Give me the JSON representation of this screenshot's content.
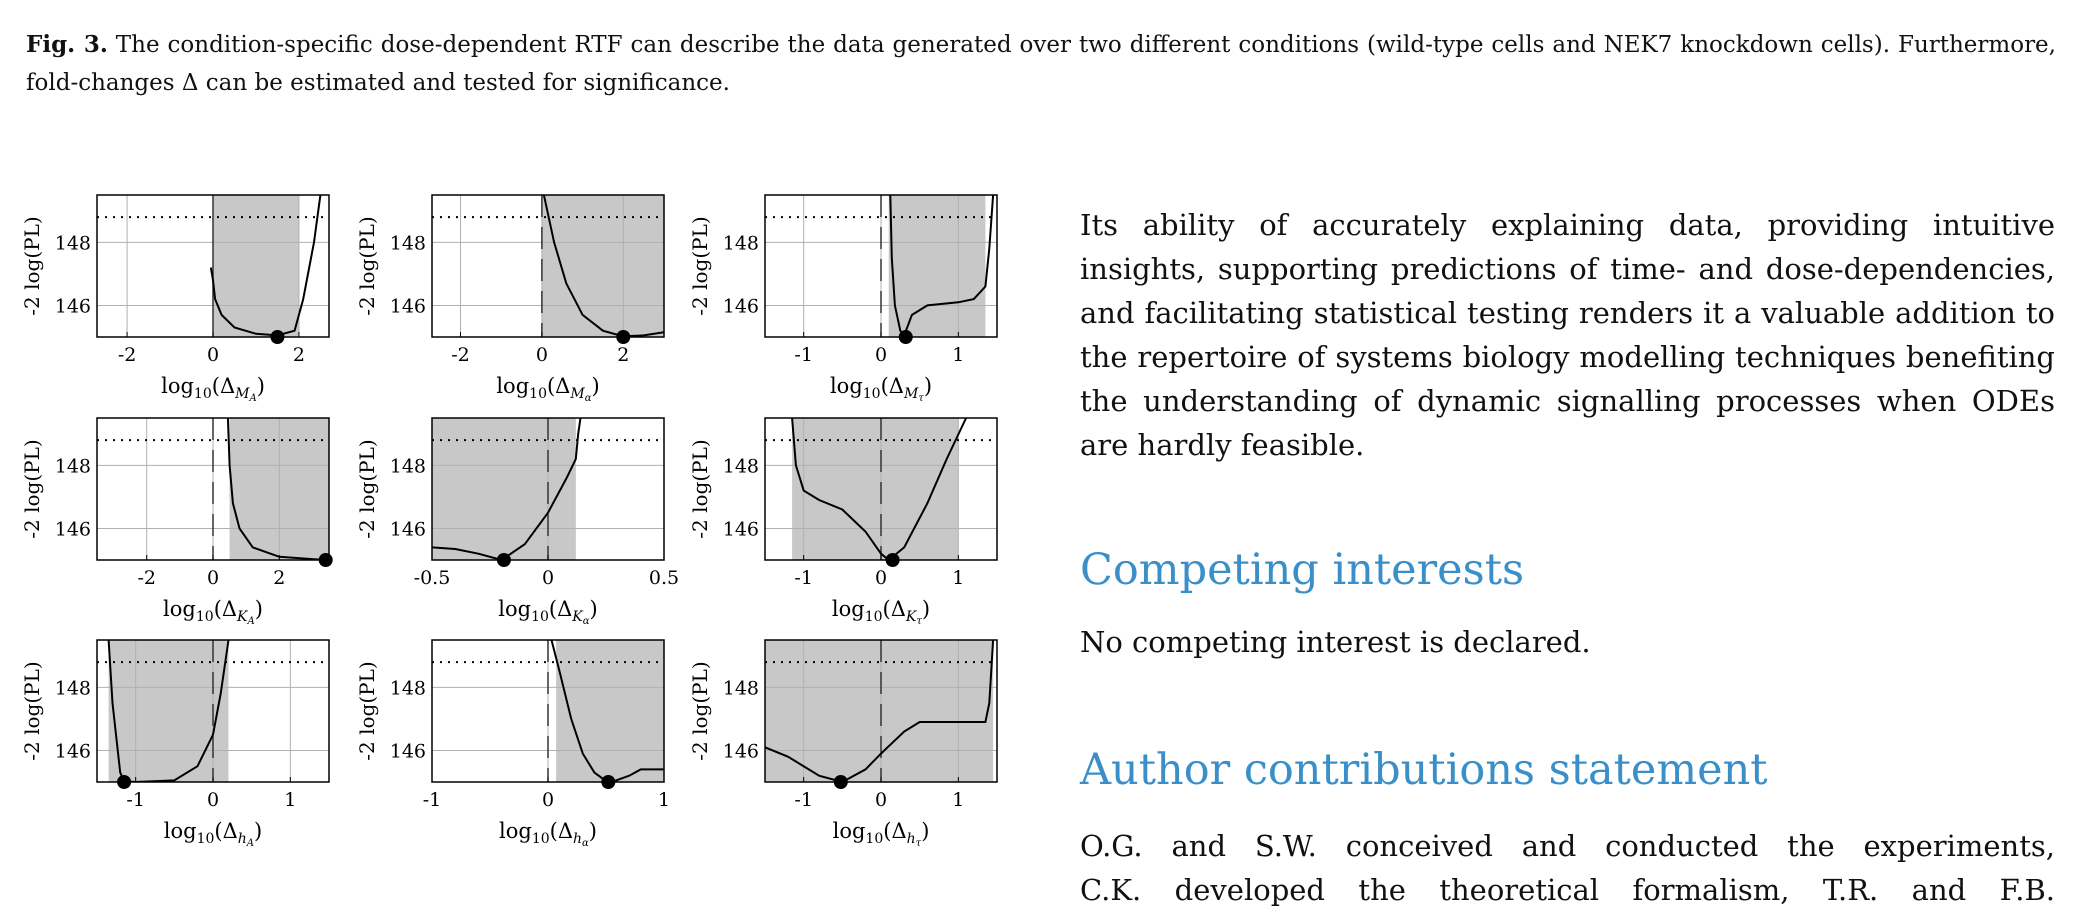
{
  "caption": {
    "label": "Fig. 3.",
    "text": " The condition-specific dose-dependent RTF can describe the data generated over two different conditions (wild-type cells and NEK7 knockdown cells). Furthermore, fold-changes Δ can be estimated and tested for significance."
  },
  "ylabel": "-2 log(PL)",
  "panels": [
    {
      "xlabel_base": "log",
      "xlabel_sub": "10",
      "xlabel_rest": "(Δ",
      "xlabel_subsub": "M_A",
      "xlabel_close": ")",
      "xticks": [
        -2,
        0,
        2
      ],
      "xlim": [
        -2.7,
        2.7
      ],
      "yticks": [
        146,
        148
      ],
      "ylim": [
        145,
        149.5
      ],
      "threshold": 148.8,
      "band": [
        0.0,
        2.0
      ],
      "dashed_zero": false,
      "curve": [
        [
          -0.05,
          147.2
        ],
        [
          0.0,
          146.8
        ],
        [
          0.05,
          146.2
        ],
        [
          0.2,
          145.7
        ],
        [
          0.5,
          145.3
        ],
        [
          1.0,
          145.1
        ],
        [
          1.5,
          145.05
        ],
        [
          1.9,
          145.2
        ],
        [
          2.1,
          146.2
        ],
        [
          2.35,
          148.0
        ],
        [
          2.5,
          149.5
        ]
      ],
      "optimum": [
        1.5,
        145.0
      ]
    },
    {
      "xlabel_base": "log",
      "xlabel_sub": "10",
      "xlabel_rest": "(Δ",
      "xlabel_subsub": "M_α",
      "xlabel_close": ")",
      "xticks": [
        -2,
        0,
        2
      ],
      "xlim": [
        -2.7,
        3.0
      ],
      "yticks": [
        146,
        148
      ],
      "ylim": [
        145,
        149.5
      ],
      "threshold": 148.8,
      "band": [
        0.0,
        3.0
      ],
      "dashed_zero": true,
      "curve": [
        [
          0.05,
          149.5
        ],
        [
          0.3,
          148.0
        ],
        [
          0.6,
          146.7
        ],
        [
          1.0,
          145.7
        ],
        [
          1.5,
          145.2
        ],
        [
          2.0,
          145.02
        ],
        [
          2.5,
          145.05
        ],
        [
          3.0,
          145.15
        ]
      ],
      "optimum": [
        2.0,
        145.0
      ]
    },
    {
      "xlabel_base": "log",
      "xlabel_sub": "10",
      "xlabel_rest": "(Δ",
      "xlabel_subsub": "M_τ",
      "xlabel_close": ")",
      "xticks": [
        -1,
        0,
        1
      ],
      "xlim": [
        -1.5,
        1.5
      ],
      "yticks": [
        146,
        148
      ],
      "ylim": [
        145,
        149.5
      ],
      "threshold": 148.8,
      "band": [
        0.1,
        1.35
      ],
      "dashed_zero": true,
      "curve": [
        [
          0.12,
          149.5
        ],
        [
          0.14,
          147.5
        ],
        [
          0.18,
          146.0
        ],
        [
          0.25,
          145.2
        ],
        [
          0.3,
          145.05
        ],
        [
          0.4,
          145.7
        ],
        [
          0.6,
          146.0
        ],
        [
          1.0,
          146.1
        ],
        [
          1.2,
          146.2
        ],
        [
          1.35,
          146.6
        ],
        [
          1.4,
          147.8
        ],
        [
          1.45,
          149.5
        ]
      ],
      "optimum": [
        0.32,
        145.0
      ]
    },
    {
      "xlabel_base": "log",
      "xlabel_sub": "10",
      "xlabel_rest": "(Δ",
      "xlabel_subsub": "K_A",
      "xlabel_close": ")",
      "xticks": [
        -2,
        0,
        2
      ],
      "xlim": [
        -3.5,
        3.5
      ],
      "yticks": [
        146,
        148
      ],
      "ylim": [
        145,
        149.5
      ],
      "threshold": 148.8,
      "band": [
        0.5,
        3.5
      ],
      "dashed_zero": true,
      "curve": [
        [
          0.45,
          149.5
        ],
        [
          0.5,
          148.0
        ],
        [
          0.6,
          146.8
        ],
        [
          0.8,
          146.0
        ],
        [
          1.2,
          145.4
        ],
        [
          2.0,
          145.1
        ],
        [
          3.0,
          145.03
        ],
        [
          3.4,
          145.0
        ]
      ],
      "optimum": [
        3.4,
        145.0
      ]
    },
    {
      "xlabel_base": "log",
      "xlabel_sub": "10",
      "xlabel_rest": "(Δ",
      "xlabel_subsub": "K_α",
      "xlabel_close": ")",
      "xticks": [
        -0.5,
        0,
        0.5
      ],
      "xlim": [
        -0.5,
        0.5
      ],
      "yticks": [
        146,
        148
      ],
      "ylim": [
        145,
        149.5
      ],
      "threshold": 148.8,
      "band": [
        -0.5,
        0.12
      ],
      "dashed_zero": true,
      "curve": [
        [
          -0.5,
          145.4
        ],
        [
          -0.4,
          145.35
        ],
        [
          -0.3,
          145.2
        ],
        [
          -0.2,
          145.0
        ],
        [
          -0.1,
          145.5
        ],
        [
          0.0,
          146.5
        ],
        [
          0.08,
          147.6
        ],
        [
          0.12,
          148.2
        ],
        [
          0.13,
          149.0
        ],
        [
          0.14,
          149.5
        ]
      ],
      "optimum": [
        -0.19,
        145.0
      ]
    },
    {
      "xlabel_base": "log",
      "xlabel_sub": "10",
      "xlabel_rest": "(Δ",
      "xlabel_subsub": "K_τ",
      "xlabel_close": ")",
      "xticks": [
        -1,
        0,
        1
      ],
      "xlim": [
        -1.5,
        1.5
      ],
      "yticks": [
        146,
        148
      ],
      "ylim": [
        145,
        149.5
      ],
      "threshold": 148.8,
      "band": [
        -1.15,
        1.0
      ],
      "dashed_zero": true,
      "curve": [
        [
          -1.15,
          149.5
        ],
        [
          -1.1,
          148.0
        ],
        [
          -1.0,
          147.2
        ],
        [
          -0.8,
          146.9
        ],
        [
          -0.5,
          146.6
        ],
        [
          -0.2,
          145.9
        ],
        [
          0.0,
          145.2
        ],
        [
          0.1,
          145.0
        ],
        [
          0.3,
          145.4
        ],
        [
          0.6,
          146.8
        ],
        [
          0.85,
          148.2
        ],
        [
          1.1,
          149.5
        ]
      ],
      "optimum": [
        0.15,
        145.0
      ]
    },
    {
      "xlabel_base": "log",
      "xlabel_sub": "10",
      "xlabel_rest": "(Δ",
      "xlabel_subsub": "h_A",
      "xlabel_close": ")",
      "xticks": [
        -1,
        0,
        1
      ],
      "xlim": [
        -1.5,
        1.5
      ],
      "yticks": [
        146,
        148
      ],
      "ylim": [
        145,
        149.5
      ],
      "threshold": 148.8,
      "band": [
        -1.35,
        0.2
      ],
      "dashed_zero": true,
      "curve": [
        [
          -1.35,
          149.5
        ],
        [
          -1.3,
          147.5
        ],
        [
          -1.2,
          145.3
        ],
        [
          -1.15,
          145.02
        ],
        [
          -1.0,
          145.0
        ],
        [
          -0.5,
          145.05
        ],
        [
          -0.2,
          145.5
        ],
        [
          0.0,
          146.5
        ],
        [
          0.1,
          147.8
        ],
        [
          0.2,
          149.5
        ]
      ],
      "optimum": [
        -1.15,
        145.0
      ]
    },
    {
      "xlabel_base": "log",
      "xlabel_sub": "10",
      "xlabel_rest": "(Δ",
      "xlabel_subsub": "h_α",
      "xlabel_close": ")",
      "xticks": [
        -1,
        0,
        1
      ],
      "xlim": [
        -1,
        1
      ],
      "yticks": [
        146,
        148
      ],
      "ylim": [
        145,
        149.5
      ],
      "threshold": 148.8,
      "band": [
        0.07,
        1.0
      ],
      "dashed_zero": true,
      "curve": [
        [
          0.03,
          149.5
        ],
        [
          0.1,
          148.5
        ],
        [
          0.2,
          147.0
        ],
        [
          0.3,
          145.9
        ],
        [
          0.4,
          145.3
        ],
        [
          0.5,
          145.03
        ],
        [
          0.55,
          145.0
        ],
        [
          0.7,
          145.2
        ],
        [
          0.8,
          145.4
        ],
        [
          1.0,
          145.4
        ]
      ],
      "optimum": [
        0.52,
        145.0
      ]
    },
    {
      "xlabel_base": "log",
      "xlabel_sub": "10",
      "xlabel_rest": "(Δ",
      "xlabel_subsub": "h_τ",
      "xlabel_close": ")",
      "xticks": [
        -1,
        0,
        1
      ],
      "xlim": [
        -1.5,
        1.5
      ],
      "yticks": [
        146,
        148
      ],
      "ylim": [
        145,
        149.5
      ],
      "threshold": 148.8,
      "band": [
        -1.5,
        1.45
      ],
      "dashed_zero": true,
      "curve": [
        [
          -1.5,
          146.1
        ],
        [
          -1.2,
          145.8
        ],
        [
          -0.8,
          145.2
        ],
        [
          -0.5,
          145.0
        ],
        [
          -0.2,
          145.4
        ],
        [
          0.0,
          145.9
        ],
        [
          0.3,
          146.6
        ],
        [
          0.5,
          146.9
        ],
        [
          1.0,
          146.9
        ],
        [
          1.35,
          146.9
        ],
        [
          1.4,
          147.5
        ],
        [
          1.45,
          149.5
        ]
      ],
      "optimum": [
        -0.52,
        145.0
      ]
    }
  ],
  "body_paragraph": "Its ability of accurately explaining data, providing intuitive insights, supporting predictions of time- and dose-dependencies, and facilitating statistical testing renders it a valuable addition to the repertoire of systems biology modelling techniques benefiting the understanding of dynamic signalling processes when ODEs are hardly feasible.",
  "competing": {
    "title": "Competing interests",
    "text": "No competing interest is declared."
  },
  "contributions": {
    "title": "Author contributions statement",
    "line1": "O.G. and S.W. conceived and conducted the experiments,",
    "line2": "C.K. developed the theoretical formalism, T.R. and F.B."
  }
}
